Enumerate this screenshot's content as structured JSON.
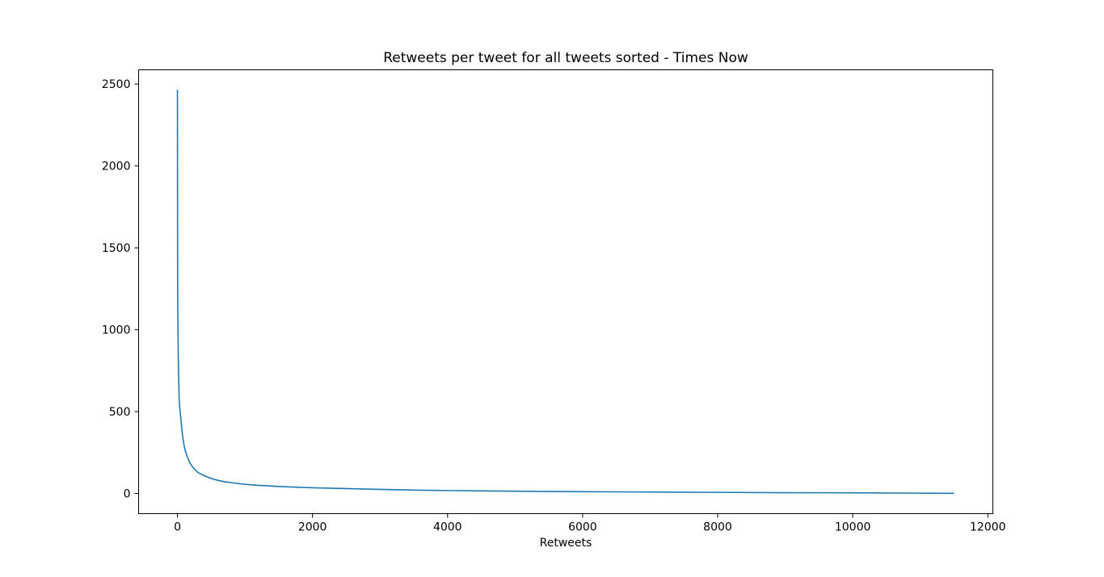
{
  "chart_data": {
    "type": "line",
    "title": "Retweets per tweet for all tweets sorted - Times Now",
    "xlabel": "Retweets",
    "ylabel": "",
    "xlim": [
      -575,
      12075
    ],
    "ylim": [
      -123,
      2587
    ],
    "xticks": [
      0,
      2000,
      4000,
      6000,
      8000,
      10000,
      12000
    ],
    "xtick_labels": [
      "0",
      "2000",
      "4000",
      "6000",
      "8000",
      "10000",
      "12000"
    ],
    "yticks": [
      0,
      500,
      1000,
      1500,
      2000,
      2500
    ],
    "ytick_labels": [
      "0",
      "500",
      "1000",
      "1500",
      "2000",
      "2500"
    ],
    "grid": false,
    "legend": "none",
    "series": [
      {
        "color": "#1f77b4",
        "x": [
          0,
          1,
          2,
          3,
          5,
          8,
          12,
          18,
          25,
          35,
          50,
          65,
          80,
          100,
          120,
          150,
          180,
          210,
          250,
          300,
          350,
          400,
          500,
          600,
          700,
          800,
          1000,
          1200,
          1500,
          1800,
          2000,
          2500,
          3000,
          3500,
          4000,
          4500,
          5000,
          6000,
          7000,
          8000,
          9000,
          10000,
          11000,
          11500
        ],
        "y": [
          2465,
          2000,
          1600,
          1300,
          1150,
          1000,
          850,
          720,
          580,
          520,
          460,
          390,
          340,
          290,
          255,
          220,
          190,
          170,
          150,
          130,
          118,
          108,
          92,
          80,
          72,
          66,
          56,
          50,
          43,
          38,
          35,
          30,
          25,
          21,
          18,
          16,
          14,
          11,
          9,
          7,
          5,
          4,
          2,
          1
        ]
      }
    ]
  }
}
